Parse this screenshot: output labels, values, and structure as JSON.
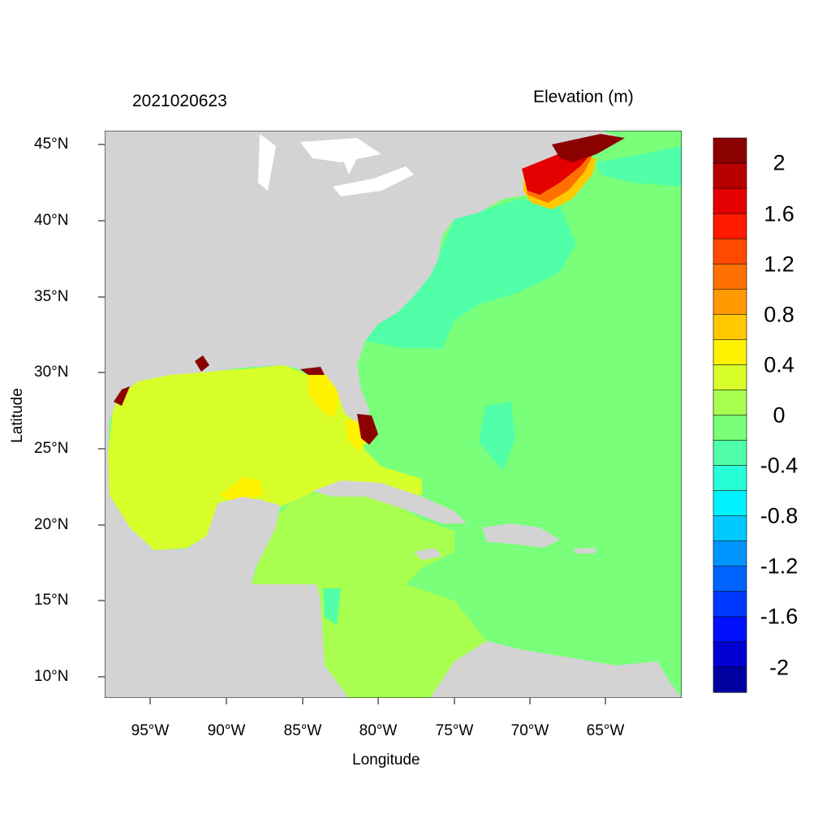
{
  "header": {
    "datetime": "2021020623",
    "variable": "Elevation (m)"
  },
  "axes": {
    "xlabel": "Longitude",
    "ylabel": "Latitude",
    "xticks": [
      "95°W",
      "90°W",
      "85°W",
      "80°W",
      "75°W",
      "70°W",
      "65°W"
    ],
    "yticks": [
      "45°N",
      "40°N",
      "35°N",
      "30°N",
      "25°N",
      "20°N",
      "15°N",
      "10°N"
    ],
    "lon_range": [
      -98,
      -60
    ],
    "lat_range": [
      8.5,
      46
    ]
  },
  "colorbar": {
    "labels": [
      "2",
      "1.6",
      "1.2",
      "0.8",
      "0.4",
      "0",
      "-0.4",
      "-0.8",
      "-1.2",
      "-1.6",
      "-2"
    ],
    "colors": [
      "#8b0000",
      "#b90000",
      "#e40000",
      "#ff1a00",
      "#ff4a00",
      "#ff7000",
      "#ff9a00",
      "#ffc800",
      "#fff200",
      "#d8ff2a",
      "#a8ff50",
      "#7aff7a",
      "#50ffa8",
      "#28ffd8",
      "#00f2ff",
      "#00c8ff",
      "#0094ff",
      "#0064ff",
      "#0038ff",
      "#0010ff",
      "#0000d0",
      "#0000a0"
    ]
  },
  "map_colors": {
    "land": "#d3d3d3",
    "water_background": "#7aff7a",
    "gulf": "#d8ff2a",
    "caribbean": "#a8ff50",
    "shelf": "#50ffa8",
    "surge_high": "#ff1a00",
    "surge_max": "#8b0000"
  }
}
